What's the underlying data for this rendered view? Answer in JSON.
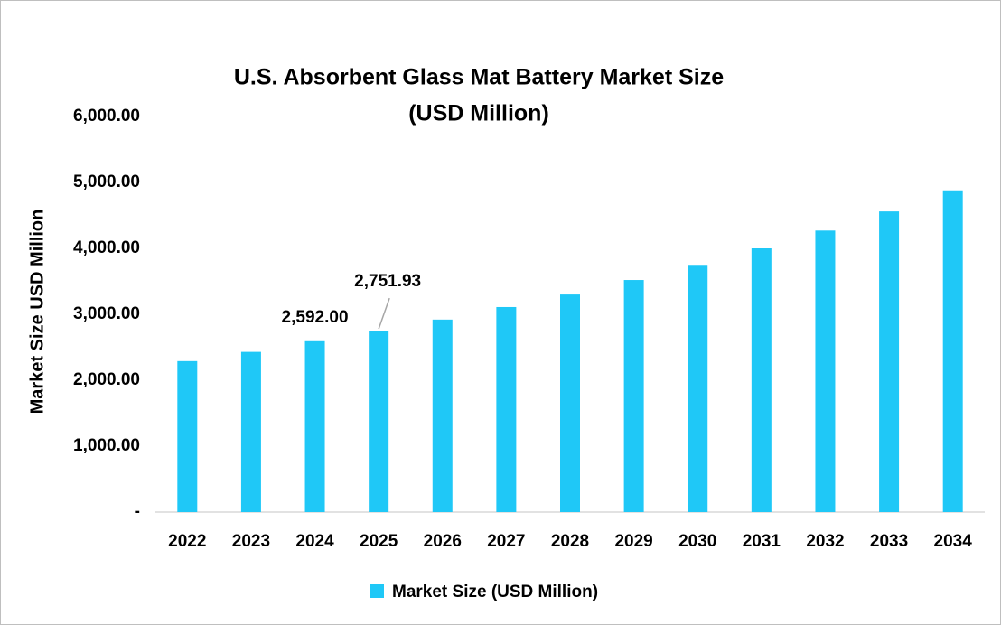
{
  "chart_data": {
    "type": "bar",
    "title": [
      "U.S. Absorbent Glass Mat Battery Market Size",
      "(USD Million)"
    ],
    "y_axis_label": "Market Size USD Million",
    "categories": [
      "2022",
      "2023",
      "2024",
      "2025",
      "2026",
      "2027",
      "2028",
      "2029",
      "2030",
      "2031",
      "2032",
      "2033",
      "2034"
    ],
    "series": [
      {
        "name": "Market Size (USD Million)",
        "color": "#1fc8f7",
        "values": [
          2290,
          2430,
          2592,
          2751.93,
          2920,
          3110,
          3300,
          3520,
          3750,
          4000,
          4270,
          4560,
          4880
        ],
        "value_labels": [
          null,
          null,
          "2,592.00",
          "2,751.93",
          null,
          null,
          null,
          null,
          null,
          null,
          null,
          null,
          null
        ]
      }
    ],
    "ylim": [
      0,
      6000
    ],
    "yticks": [
      {
        "value": 0,
        "label": "-"
      },
      {
        "value": 1000,
        "label": "1,000.00"
      },
      {
        "value": 2000,
        "label": "2,000.00"
      },
      {
        "value": 3000,
        "label": "3,000.00"
      },
      {
        "value": 4000,
        "label": "4,000.00"
      },
      {
        "value": 5000,
        "label": "5,000.00"
      },
      {
        "value": 6000,
        "label": "6,000.00"
      }
    ],
    "grid": false,
    "legend": "bottom"
  }
}
